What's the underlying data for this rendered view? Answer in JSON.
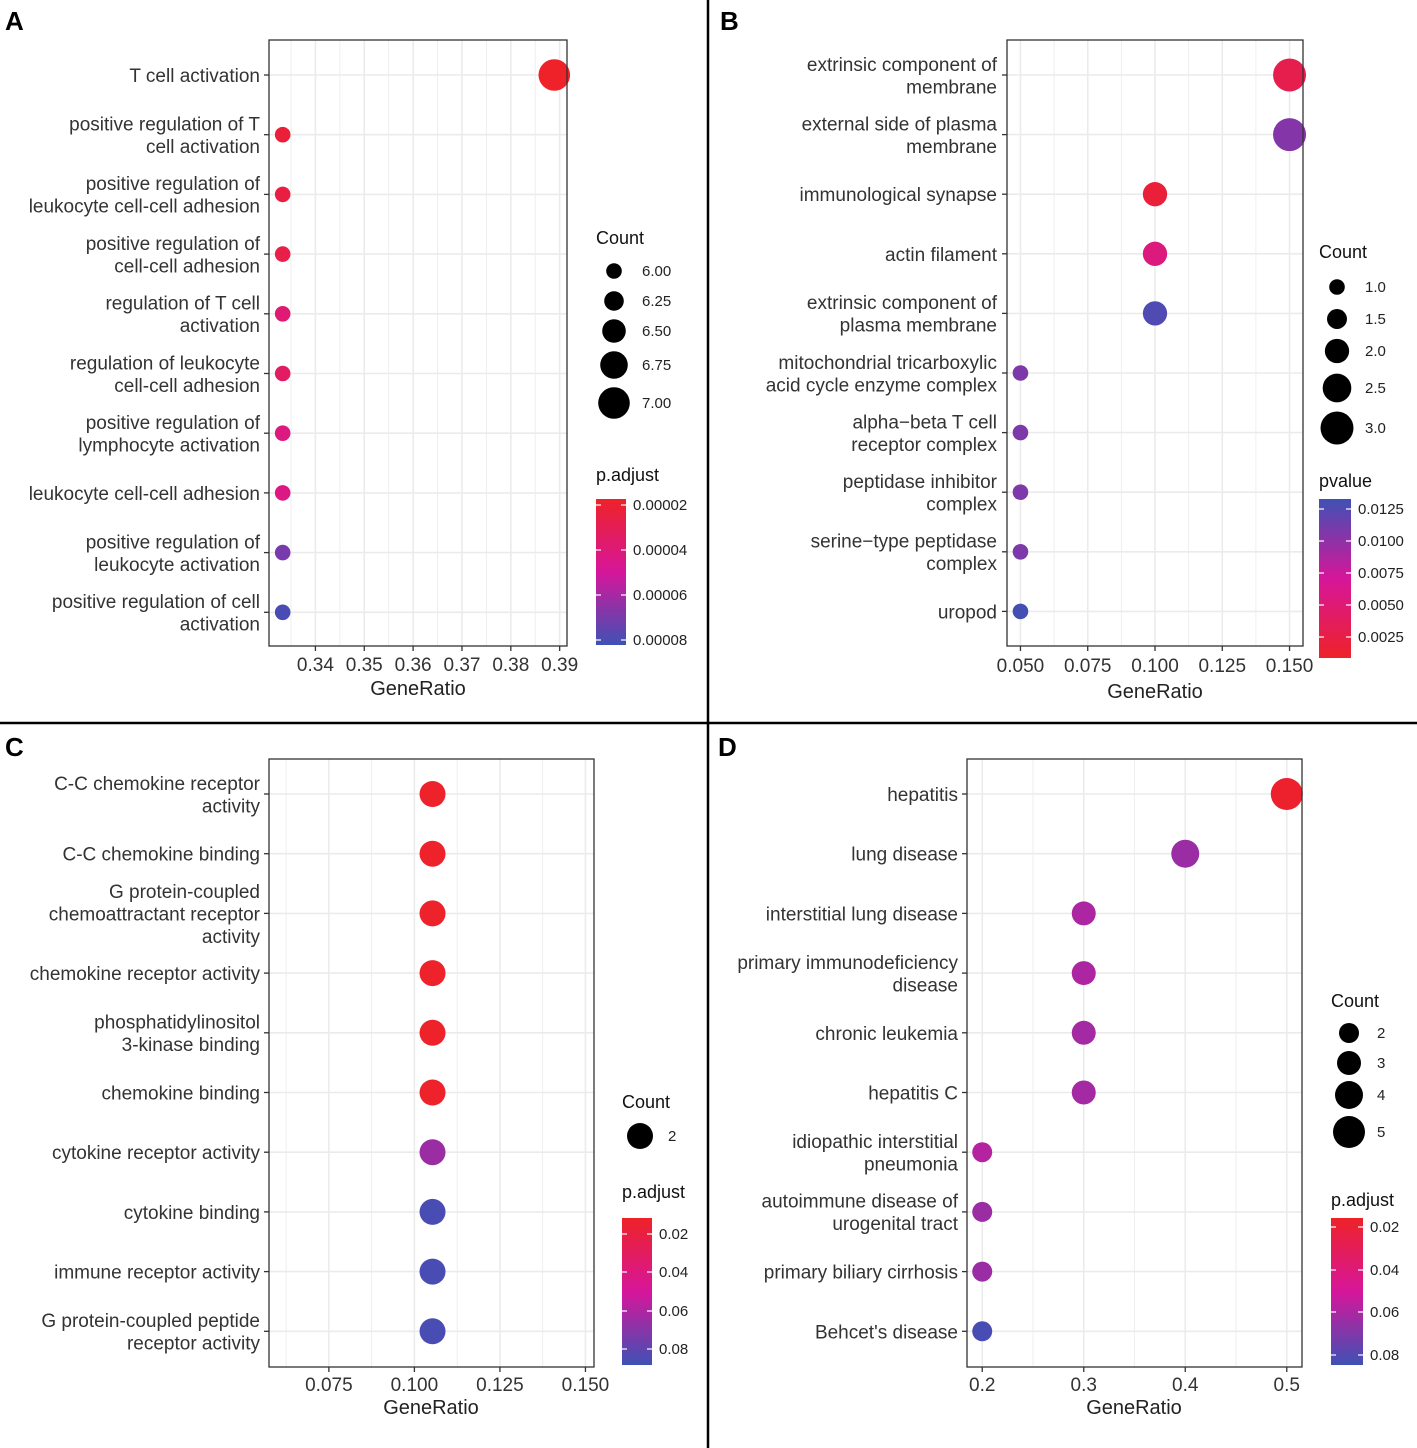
{
  "colors": {
    "low": "#3f51b5",
    "mid": "#d6169a",
    "high": "#ee2228"
  },
  "chart_data": [
    {
      "panel": "A",
      "type": "scatter",
      "xlabel": "GeneRatio",
      "xlim": [
        0.3305,
        0.3915
      ],
      "xticks": [
        {
          "value": 0.34,
          "label": "0.34"
        },
        {
          "value": 0.35,
          "label": "0.35"
        },
        {
          "value": 0.36,
          "label": "0.36"
        },
        {
          "value": 0.37,
          "label": "0.37"
        },
        {
          "value": 0.38,
          "label": "0.38"
        },
        {
          "value": 0.39,
          "label": "0.39"
        }
      ],
      "terms": [
        {
          "label": [
            "T cell activation"
          ],
          "x": 0.3889,
          "count": 7,
          "color_value": 2e-05
        },
        {
          "label": [
            "positive regulation of T",
            "cell activation"
          ],
          "x": 0.3333,
          "count": 6,
          "color_value": 2.5e-05
        },
        {
          "label": [
            "positive regulation of",
            "leukocyte cell-cell adhesion"
          ],
          "x": 0.3333,
          "count": 6,
          "color_value": 2.7e-05
        },
        {
          "label": [
            "positive regulation of",
            "cell-cell adhesion"
          ],
          "x": 0.3333,
          "count": 6,
          "color_value": 2.9e-05
        },
        {
          "label": [
            "regulation of T cell",
            "activation"
          ],
          "x": 0.3333,
          "count": 6,
          "color_value": 4e-05
        },
        {
          "label": [
            "regulation of leukocyte",
            "cell-cell adhesion"
          ],
          "x": 0.3333,
          "count": 6,
          "color_value": 3.6e-05
        },
        {
          "label": [
            "positive regulation of",
            "lymphocyte activation"
          ],
          "x": 0.3333,
          "count": 6,
          "color_value": 4.4e-05
        },
        {
          "label": [
            "leukocyte cell-cell adhesion"
          ],
          "x": 0.3333,
          "count": 6,
          "color_value": 4.5e-05
        },
        {
          "label": [
            "positive regulation of",
            "leukocyte activation"
          ],
          "x": 0.3333,
          "count": 6,
          "color_value": 7e-05
        },
        {
          "label": [
            "positive regulation of cell",
            "activation"
          ],
          "x": 0.3333,
          "count": 6,
          "color_value": 8e-05
        }
      ],
      "size_legend": {
        "title": "Count",
        "entries": [
          {
            "value": 6.0,
            "label": "6.00"
          },
          {
            "value": 6.25,
            "label": "6.25"
          },
          {
            "value": 6.5,
            "label": "6.50"
          },
          {
            "value": 6.75,
            "label": "6.75"
          },
          {
            "value": 7.0,
            "label": "7.00"
          }
        ]
      },
      "color_legend": {
        "title": "p.adjust",
        "range": [
          2e-05,
          8.2e-05
        ],
        "top_color": "high",
        "ticks": [
          {
            "value": 2e-05,
            "label": "0.00002"
          },
          {
            "value": 4e-05,
            "label": "0.00004"
          },
          {
            "value": 6e-05,
            "label": "0.00006"
          },
          {
            "value": 8e-05,
            "label": "0.00008"
          }
        ]
      }
    },
    {
      "panel": "B",
      "type": "scatter",
      "xlabel": "GeneRatio",
      "xlim": [
        0.045,
        0.155
      ],
      "xticks": [
        {
          "value": 0.05,
          "label": "0.050"
        },
        {
          "value": 0.075,
          "label": "0.075"
        },
        {
          "value": 0.1,
          "label": "0.100"
        },
        {
          "value": 0.125,
          "label": "0.125"
        },
        {
          "value": 0.15,
          "label": "0.150"
        }
      ],
      "terms": [
        {
          "label": [
            "extrinsic component of",
            "membrane"
          ],
          "x": 0.15,
          "count": 3,
          "color_value": 0.0025
        },
        {
          "label": [
            "external side of plasma",
            "membrane"
          ],
          "x": 0.15,
          "count": 3,
          "color_value": 0.0105
        },
        {
          "label": [
            "immunological synapse"
          ],
          "x": 0.1,
          "count": 2,
          "color_value": 0.0015
        },
        {
          "label": [
            "actin filament"
          ],
          "x": 0.1,
          "count": 2,
          "color_value": 0.0052
        },
        {
          "label": [
            "extrinsic component of",
            "plasma membrane"
          ],
          "x": 0.1,
          "count": 2,
          "color_value": 0.0128
        },
        {
          "label": [
            "mitochondrial tricarboxylic",
            "acid cycle enzyme complex"
          ],
          "x": 0.05,
          "count": 1,
          "color_value": 0.0108
        },
        {
          "label": [
            "alpha−beta T cell",
            "receptor complex"
          ],
          "x": 0.05,
          "count": 1,
          "color_value": 0.0108
        },
        {
          "label": [
            "peptidase inhibitor",
            "complex"
          ],
          "x": 0.05,
          "count": 1,
          "color_value": 0.0108
        },
        {
          "label": [
            "serine−type peptidase",
            "complex"
          ],
          "x": 0.05,
          "count": 1,
          "color_value": 0.0108
        },
        {
          "label": [
            "uropod"
          ],
          "x": 0.05,
          "count": 1,
          "color_value": 0.0133
        }
      ],
      "size_legend": {
        "title": "Count",
        "entries": [
          {
            "value": 1.0,
            "label": "1.0"
          },
          {
            "value": 1.5,
            "label": "1.5"
          },
          {
            "value": 2.0,
            "label": "2.0"
          },
          {
            "value": 2.5,
            "label": "2.5"
          },
          {
            "value": 3.0,
            "label": "3.0"
          }
        ]
      },
      "color_legend": {
        "title": "pvalue",
        "range": [
          0.0004,
          0.0135
        ],
        "top_color": "low",
        "ticks": [
          {
            "value": 0.0125,
            "label": "0.0125"
          },
          {
            "value": 0.01,
            "label": "0.0100"
          },
          {
            "value": 0.0075,
            "label": "0.0075"
          },
          {
            "value": 0.005,
            "label": "0.0050"
          },
          {
            "value": 0.0025,
            "label": "0.0025"
          }
        ]
      }
    },
    {
      "panel": "C",
      "type": "scatter",
      "xlabel": "GeneRatio",
      "xlim": [
        0.0575,
        0.1525
      ],
      "xticks": [
        {
          "value": 0.075,
          "label": "0.075"
        },
        {
          "value": 0.1,
          "label": "0.100"
        },
        {
          "value": 0.125,
          "label": "0.125"
        },
        {
          "value": 0.15,
          "label": "0.150"
        }
      ],
      "terms": [
        {
          "label": [
            "C-C chemokine receptor",
            "activity"
          ],
          "x": 0.1053,
          "count": 2,
          "color_value": 0.018
        },
        {
          "label": [
            "C-C chemokine binding"
          ],
          "x": 0.1053,
          "count": 2,
          "color_value": 0.018
        },
        {
          "label": [
            "G protein-coupled",
            "chemoattractant receptor",
            "activity"
          ],
          "x": 0.1053,
          "count": 2,
          "color_value": 0.018
        },
        {
          "label": [
            "chemokine receptor activity"
          ],
          "x": 0.1053,
          "count": 2,
          "color_value": 0.018
        },
        {
          "label": [
            "phosphatidylinositol",
            "3-kinase binding"
          ],
          "x": 0.1053,
          "count": 2,
          "color_value": 0.018
        },
        {
          "label": [
            "chemokine binding"
          ],
          "x": 0.1053,
          "count": 2,
          "color_value": 0.018
        },
        {
          "label": [
            "cytokine receptor activity"
          ],
          "x": 0.1053,
          "count": 2,
          "color_value": 0.068
        },
        {
          "label": [
            "cytokine binding"
          ],
          "x": 0.1053,
          "count": 2,
          "color_value": 0.088
        },
        {
          "label": [
            "immune receptor activity"
          ],
          "x": 0.1053,
          "count": 2,
          "color_value": 0.088
        },
        {
          "label": [
            "G protein-coupled peptide",
            "receptor activity"
          ],
          "x": 0.1053,
          "count": 2,
          "color_value": 0.088
        }
      ],
      "size_legend": {
        "title": "Count",
        "entries": [
          {
            "value": 2,
            "label": "2"
          }
        ]
      },
      "color_legend": {
        "title": "p.adjust",
        "range": [
          0.017,
          0.0905
        ],
        "top_color": "high",
        "ticks": [
          {
            "value": 0.02,
            "label": "0.02"
          },
          {
            "value": 0.04,
            "label": "0.04"
          },
          {
            "value": 0.06,
            "label": "0.06"
          },
          {
            "value": 0.08,
            "label": "0.08"
          }
        ]
      }
    },
    {
      "panel": "D",
      "type": "scatter",
      "xlabel": "GeneRatio",
      "xlim": [
        0.185,
        0.515
      ],
      "xticks": [
        {
          "value": 0.2,
          "label": "0.2"
        },
        {
          "value": 0.3,
          "label": "0.3"
        },
        {
          "value": 0.4,
          "label": "0.4"
        },
        {
          "value": 0.5,
          "label": "0.5"
        }
      ],
      "terms": [
        {
          "label": [
            "hepatitis"
          ],
          "x": 0.5,
          "count": 5,
          "color_value": 0.019
        },
        {
          "label": [
            "lung disease"
          ],
          "x": 0.4,
          "count": 4,
          "color_value": 0.068
        },
        {
          "label": [
            "interstitial lung disease"
          ],
          "x": 0.3,
          "count": 3,
          "color_value": 0.064
        },
        {
          "label": [
            "primary immunodeficiency",
            "disease"
          ],
          "x": 0.3,
          "count": 3,
          "color_value": 0.064
        },
        {
          "label": [
            "chronic leukemia"
          ],
          "x": 0.3,
          "count": 3,
          "color_value": 0.066
        },
        {
          "label": [
            "hepatitis C"
          ],
          "x": 0.3,
          "count": 3,
          "color_value": 0.066
        },
        {
          "label": [
            "idiopathic interstitial",
            "pneumonia"
          ],
          "x": 0.2,
          "count": 2,
          "color_value": 0.062
        },
        {
          "label": [
            "autoimmune disease of",
            "urogenital tract"
          ],
          "x": 0.2,
          "count": 2,
          "color_value": 0.068
        },
        {
          "label": [
            "primary biliary cirrhosis"
          ],
          "x": 0.2,
          "count": 2,
          "color_value": 0.068
        },
        {
          "label": [
            "Behcet's disease"
          ],
          "x": 0.2,
          "count": 2,
          "color_value": 0.088
        }
      ],
      "size_legend": {
        "title": "Count",
        "entries": [
          {
            "value": 2,
            "label": "2"
          },
          {
            "value": 3,
            "label": "3"
          },
          {
            "value": 4,
            "label": "4"
          },
          {
            "value": 5,
            "label": "5"
          }
        ]
      },
      "color_legend": {
        "title": "p.adjust",
        "range": [
          0.017,
          0.0905
        ],
        "top_color": "high",
        "ticks": [
          {
            "value": 0.02,
            "label": "0.02"
          },
          {
            "value": 0.04,
            "label": "0.04"
          },
          {
            "value": 0.06,
            "label": "0.06"
          },
          {
            "value": 0.08,
            "label": "0.08"
          }
        ]
      }
    }
  ]
}
